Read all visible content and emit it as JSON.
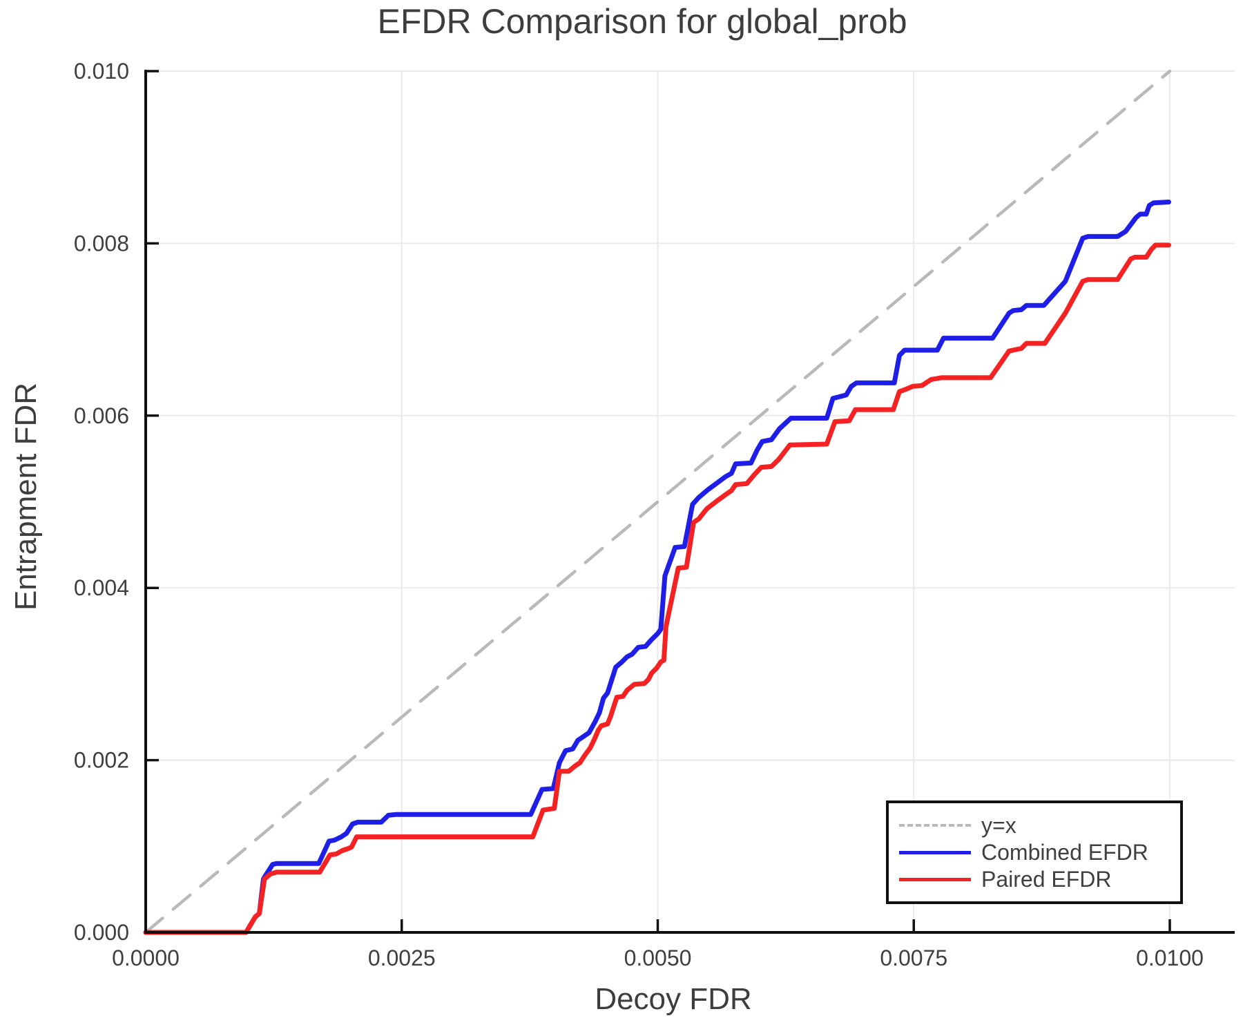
{
  "colors": {
    "text": "#3f3f3f",
    "spine": "#111111",
    "grid": "#eaeaea",
    "background": "#ffffff",
    "combined": "#1e1ee6",
    "paired": "#f42222",
    "identity": "#b9b9b9"
  },
  "chart_data": {
    "type": "line",
    "title": "EFDR Comparison for global_prob",
    "xlabel": "Decoy FDR",
    "ylabel": "Entrapment FDR",
    "xlim": [
      0.0,
      0.0106
    ],
    "ylim": [
      0.0,
      0.01
    ],
    "grid": true,
    "legend_position": "bottom-right",
    "x_ticks": {
      "values": [
        0.0,
        0.0025,
        0.005,
        0.0075,
        0.01
      ],
      "labels": [
        "0.0000",
        "0.0025",
        "0.0050",
        "0.0075",
        "0.0100"
      ]
    },
    "y_ticks": {
      "values": [
        0.0,
        0.002,
        0.004,
        0.006,
        0.008,
        0.01
      ],
      "labels": [
        "0.000",
        "0.002",
        "0.004",
        "0.006",
        "0.008",
        "0.010"
      ]
    },
    "series": [
      {
        "name": "y=x",
        "color": "#b9b9b9",
        "dash": true,
        "width": 4.5,
        "points": [
          [
            0.0,
            0.0
          ],
          [
            0.01,
            0.01
          ]
        ]
      },
      {
        "name": "Combined EFDR",
        "color": "#1e1ee6",
        "dash": false,
        "width": 7,
        "points": [
          [
            0.0,
            0.0
          ],
          [
            0.00098,
            0.0
          ],
          [
            0.00107,
            0.00018
          ],
          [
            0.00111,
            0.00022
          ],
          [
            0.00115,
            0.00062
          ],
          [
            0.00117,
            0.00066
          ],
          [
            0.00124,
            0.00079
          ],
          [
            0.00128,
            0.0008
          ],
          [
            0.00169,
            0.0008
          ],
          [
            0.00179,
            0.00106
          ],
          [
            0.00184,
            0.00107
          ],
          [
            0.00191,
            0.00111
          ],
          [
            0.00196,
            0.00115
          ],
          [
            0.00202,
            0.00126
          ],
          [
            0.00207,
            0.00128
          ],
          [
            0.0023,
            0.00128
          ],
          [
            0.00237,
            0.00136
          ],
          [
            0.00245,
            0.00137
          ],
          [
            0.00376,
            0.00137
          ],
          [
            0.00387,
            0.00166
          ],
          [
            0.00398,
            0.00167
          ],
          [
            0.00404,
            0.00197
          ],
          [
            0.0041,
            0.00211
          ],
          [
            0.00417,
            0.00213
          ],
          [
            0.00422,
            0.00223
          ],
          [
            0.00427,
            0.00227
          ],
          [
            0.00433,
            0.00232
          ],
          [
            0.00439,
            0.00245
          ],
          [
            0.00443,
            0.00255
          ],
          [
            0.00447,
            0.00272
          ],
          [
            0.00451,
            0.00278
          ],
          [
            0.00459,
            0.00308
          ],
          [
            0.00465,
            0.00314
          ],
          [
            0.0047,
            0.0032
          ],
          [
            0.00475,
            0.00323
          ],
          [
            0.00481,
            0.00331
          ],
          [
            0.00488,
            0.00332
          ],
          [
            0.00494,
            0.0034
          ],
          [
            0.005,
            0.00347
          ],
          [
            0.00503,
            0.00352
          ],
          [
            0.00507,
            0.00414
          ],
          [
            0.00517,
            0.00447
          ],
          [
            0.00526,
            0.00448
          ],
          [
            0.00534,
            0.00497
          ],
          [
            0.0054,
            0.00505
          ],
          [
            0.00549,
            0.00514
          ],
          [
            0.00557,
            0.00521
          ],
          [
            0.00566,
            0.00529
          ],
          [
            0.00572,
            0.00533
          ],
          [
            0.00576,
            0.00544
          ],
          [
            0.00591,
            0.00545
          ],
          [
            0.00597,
            0.0056
          ],
          [
            0.00602,
            0.0057
          ],
          [
            0.00611,
            0.00572
          ],
          [
            0.00619,
            0.00585
          ],
          [
            0.0063,
            0.00597
          ],
          [
            0.00665,
            0.00597
          ],
          [
            0.00671,
            0.0062
          ],
          [
            0.00684,
            0.00624
          ],
          [
            0.00689,
            0.00634
          ],
          [
            0.00694,
            0.00638
          ],
          [
            0.00731,
            0.00638
          ],
          [
            0.00736,
            0.0067
          ],
          [
            0.00741,
            0.00676
          ],
          [
            0.00773,
            0.00676
          ],
          [
            0.00779,
            0.0069
          ],
          [
            0.00827,
            0.0069
          ],
          [
            0.00843,
            0.00719
          ],
          [
            0.00847,
            0.00722
          ],
          [
            0.00855,
            0.00723
          ],
          [
            0.0086,
            0.00728
          ],
          [
            0.00877,
            0.00728
          ],
          [
            0.00898,
            0.00756
          ],
          [
            0.00915,
            0.00806
          ],
          [
            0.0092,
            0.00808
          ],
          [
            0.00949,
            0.00808
          ],
          [
            0.00957,
            0.00814
          ],
          [
            0.00962,
            0.00822
          ],
          [
            0.00967,
            0.0083
          ],
          [
            0.00971,
            0.00834
          ],
          [
            0.00977,
            0.00834
          ],
          [
            0.0098,
            0.00844
          ],
          [
            0.00984,
            0.00847
          ],
          [
            0.00999,
            0.00848
          ]
        ]
      },
      {
        "name": "Paired EFDR",
        "color": "#f42222",
        "dash": false,
        "width": 7,
        "points": [
          [
            0.0,
            0.0
          ],
          [
            0.00098,
            0.0
          ],
          [
            0.00107,
            0.00018
          ],
          [
            0.00111,
            0.00022
          ],
          [
            0.00116,
            0.00062
          ],
          [
            0.00122,
            0.00068
          ],
          [
            0.00128,
            0.0007
          ],
          [
            0.0017,
            0.0007
          ],
          [
            0.0018,
            0.0009
          ],
          [
            0.00186,
            0.00091
          ],
          [
            0.00192,
            0.00095
          ],
          [
            0.00197,
            0.00097
          ],
          [
            0.00201,
            0.00099
          ],
          [
            0.00206,
            0.00111
          ],
          [
            0.00378,
            0.00111
          ],
          [
            0.00388,
            0.00142
          ],
          [
            0.00399,
            0.00144
          ],
          [
            0.00404,
            0.00187
          ],
          [
            0.00413,
            0.00187
          ],
          [
            0.00419,
            0.00193
          ],
          [
            0.00424,
            0.00197
          ],
          [
            0.00429,
            0.00206
          ],
          [
            0.00434,
            0.00214
          ],
          [
            0.00438,
            0.00224
          ],
          [
            0.00442,
            0.00235
          ],
          [
            0.00445,
            0.0024
          ],
          [
            0.00451,
            0.00242
          ],
          [
            0.00454,
            0.00251
          ],
          [
            0.0046,
            0.00273
          ],
          [
            0.00466,
            0.00274
          ],
          [
            0.0047,
            0.00281
          ],
          [
            0.00477,
            0.00288
          ],
          [
            0.00487,
            0.00289
          ],
          [
            0.00491,
            0.00294
          ],
          [
            0.00494,
            0.00301
          ],
          [
            0.00499,
            0.00307
          ],
          [
            0.00503,
            0.00314
          ],
          [
            0.00506,
            0.00316
          ],
          [
            0.00508,
            0.00355
          ],
          [
            0.0052,
            0.00423
          ],
          [
            0.00528,
            0.00424
          ],
          [
            0.00535,
            0.00476
          ],
          [
            0.0054,
            0.0048
          ],
          [
            0.00548,
            0.00492
          ],
          [
            0.00559,
            0.00502
          ],
          [
            0.00566,
            0.00508
          ],
          [
            0.00572,
            0.00513
          ],
          [
            0.00576,
            0.0052
          ],
          [
            0.00587,
            0.00521
          ],
          [
            0.00594,
            0.00531
          ],
          [
            0.00601,
            0.0054
          ],
          [
            0.00611,
            0.00541
          ],
          [
            0.00618,
            0.00549
          ],
          [
            0.00629,
            0.00566
          ],
          [
            0.00665,
            0.00567
          ],
          [
            0.00673,
            0.00593
          ],
          [
            0.00687,
            0.00594
          ],
          [
            0.00693,
            0.00607
          ],
          [
            0.0073,
            0.00607
          ],
          [
            0.00736,
            0.00628
          ],
          [
            0.00741,
            0.0063
          ],
          [
            0.00749,
            0.00634
          ],
          [
            0.00758,
            0.00635
          ],
          [
            0.00767,
            0.00642
          ],
          [
            0.00777,
            0.00644
          ],
          [
            0.00825,
            0.00644
          ],
          [
            0.00843,
            0.00675
          ],
          [
            0.00847,
            0.00676
          ],
          [
            0.00855,
            0.00678
          ],
          [
            0.0086,
            0.00684
          ],
          [
            0.00878,
            0.00684
          ],
          [
            0.00898,
            0.00719
          ],
          [
            0.00915,
            0.00756
          ],
          [
            0.0092,
            0.00758
          ],
          [
            0.00949,
            0.00758
          ],
          [
            0.00962,
            0.00782
          ],
          [
            0.00966,
            0.00784
          ],
          [
            0.00977,
            0.00784
          ],
          [
            0.00982,
            0.00793
          ],
          [
            0.00986,
            0.00798
          ],
          [
            0.00999,
            0.00798
          ]
        ]
      }
    ]
  }
}
